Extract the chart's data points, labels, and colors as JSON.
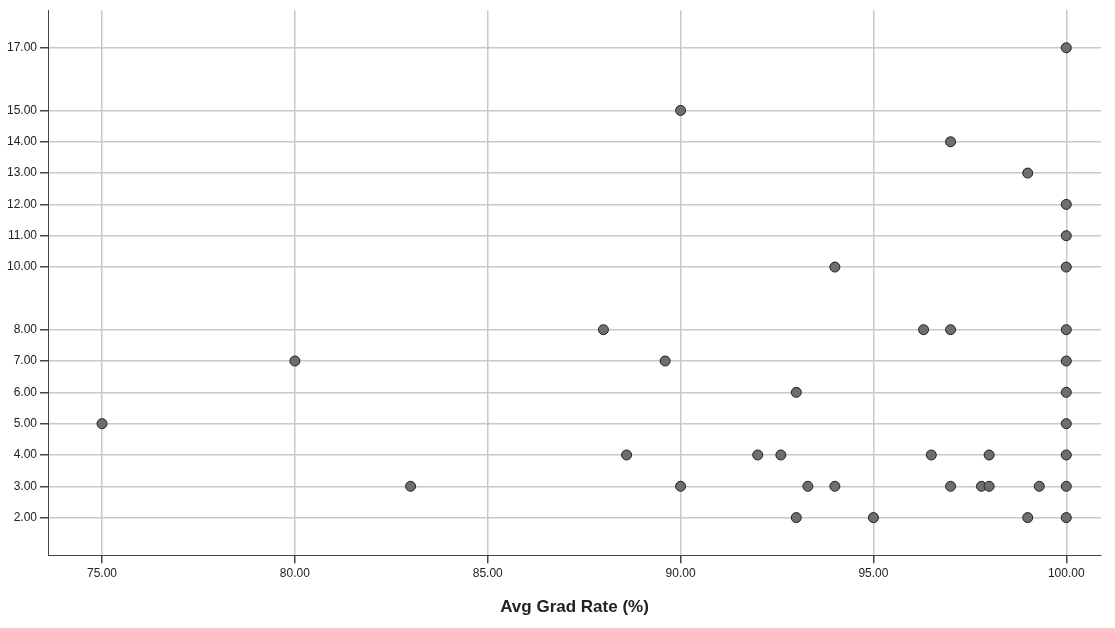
{
  "chart_data": {
    "type": "scatter",
    "xlabel": "Avg Grad Rate (%)",
    "xlim": [
      73.6,
      100.9
    ],
    "xticks": [
      {
        "value": 75,
        "label": "75.00"
      },
      {
        "value": 80,
        "label": "80.00"
      },
      {
        "value": 85,
        "label": "85.00"
      },
      {
        "value": 90,
        "label": "90.00"
      },
      {
        "value": 95,
        "label": "95.00"
      },
      {
        "value": 100,
        "label": "100.00"
      }
    ],
    "ylim": [
      0.8,
      18.2
    ],
    "yticks": [
      {
        "value": 2,
        "label": "2.00"
      },
      {
        "value": 3,
        "label": "3.00"
      },
      {
        "value": 4,
        "label": "4.00"
      },
      {
        "value": 5,
        "label": "5.00"
      },
      {
        "value": 6,
        "label": "6.00"
      },
      {
        "value": 7,
        "label": "7.00"
      },
      {
        "value": 8,
        "label": "8.00"
      },
      {
        "value": 10,
        "label": "10.00"
      },
      {
        "value": 11,
        "label": "11.00"
      },
      {
        "value": 12,
        "label": "12.00"
      },
      {
        "value": 13,
        "label": "13.00"
      },
      {
        "value": 14,
        "label": "14.00"
      },
      {
        "value": 15,
        "label": "15.00"
      },
      {
        "value": 17,
        "label": "17.00"
      }
    ],
    "grid": true,
    "marker": "circle",
    "series": [
      {
        "color": "#6e6e6e",
        "x": [
          100,
          90,
          97,
          99,
          100,
          100,
          94,
          100,
          88,
          96.3,
          97,
          100,
          80,
          89.6,
          100,
          93,
          100,
          75,
          100,
          88.6,
          92,
          92.6,
          96.5,
          98,
          100,
          83,
          90,
          93.3,
          94,
          97,
          97.8,
          98,
          99.3,
          100,
          93,
          95,
          99,
          100
        ],
        "values": [
          17,
          15,
          14,
          13,
          12,
          11,
          10,
          10,
          8,
          8,
          8,
          8,
          7,
          7,
          7,
          6,
          6,
          5,
          5,
          4,
          4,
          4,
          4,
          4,
          4,
          3,
          3,
          3,
          3,
          3,
          3,
          3,
          3,
          3,
          2,
          2,
          2,
          2
        ]
      }
    ]
  }
}
